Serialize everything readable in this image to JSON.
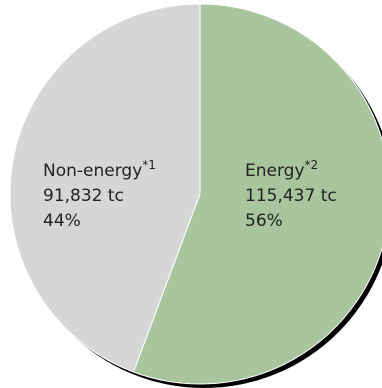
{
  "chart_data": {
    "type": "pie",
    "title": "",
    "start_angle_deg": 0,
    "direction": "clockwise",
    "slices": [
      {
        "name": "Energy",
        "marker": "*",
        "note": "2",
        "value": 115437,
        "value_label": "115,437 tc",
        "percent": 56,
        "percent_label": "56%",
        "color": "#a9c59d"
      },
      {
        "name": "Non-energy",
        "marker": "*",
        "note": "1",
        "value": 91832,
        "value_label": "91,832 tc",
        "percent": 44,
        "percent_label": "44%",
        "color": "#d6d6d6"
      }
    ],
    "shadow_color": "#000000",
    "edge_color": "#ffffff"
  }
}
